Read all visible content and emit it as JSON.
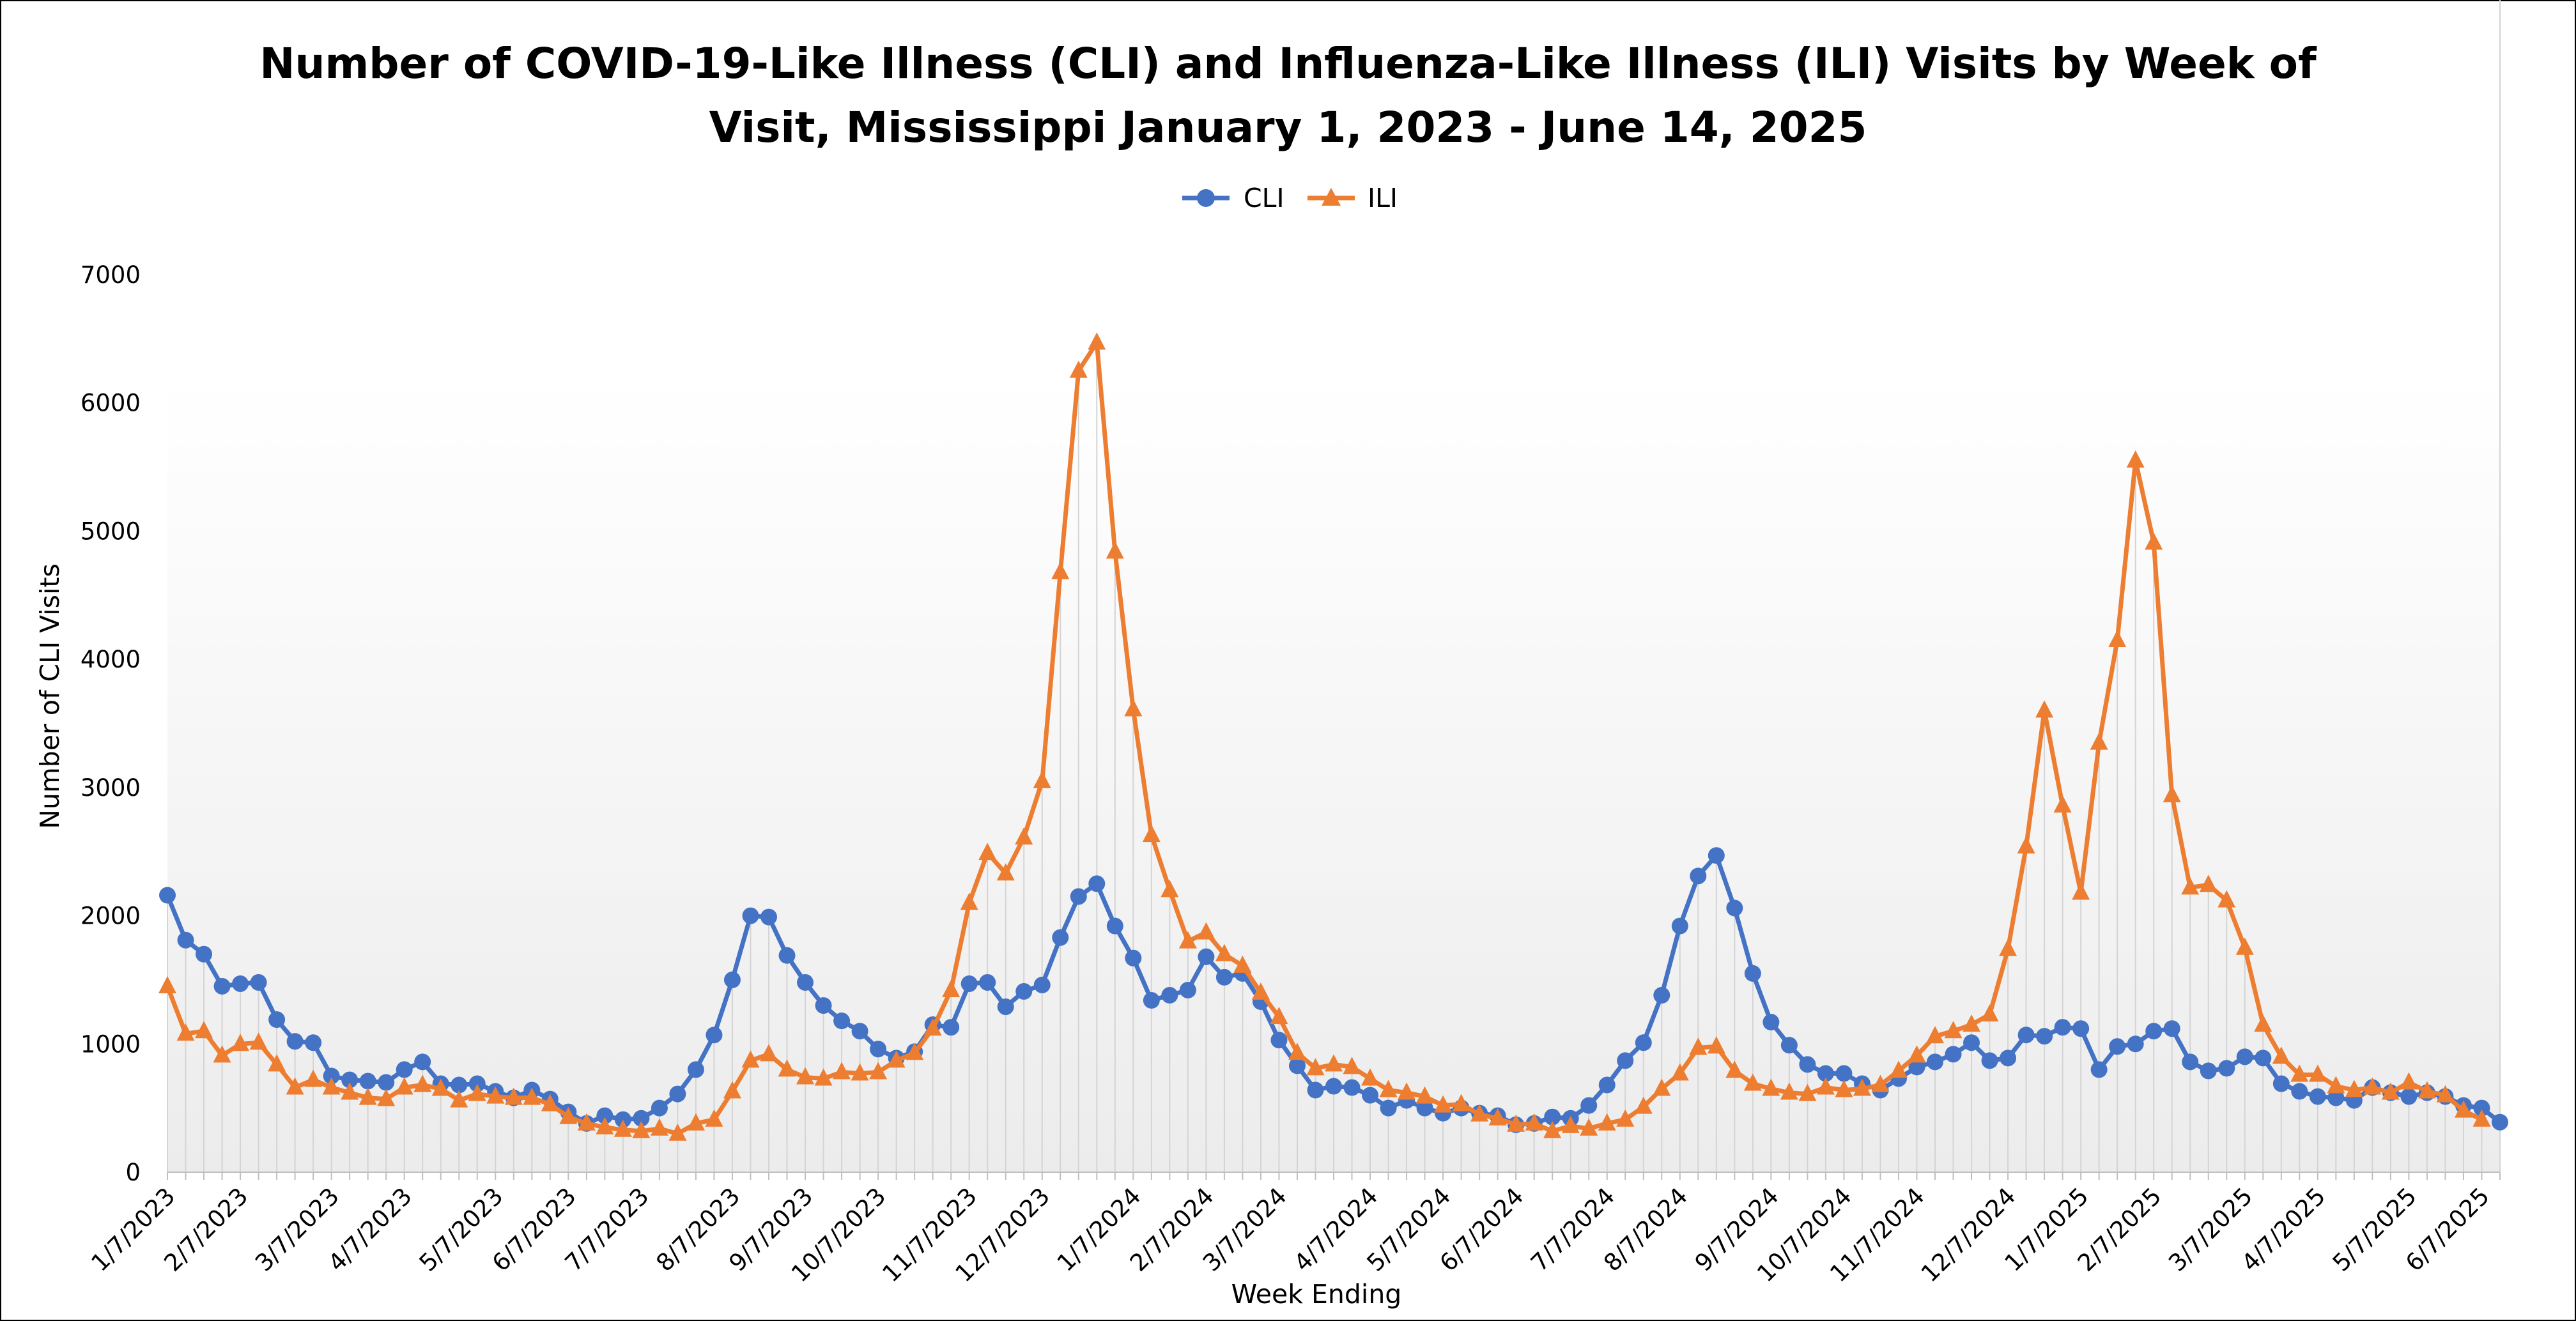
{
  "chart_data": {
    "type": "line",
    "title_line1": "Number of COVID-19-Like Illness (CLI) and Influenza-Like Illness (ILI) Visits by Week of",
    "title_line2": "Visit, Mississippi January 1, 2023 - June 14, 2025",
    "xlabel": "Week Ending",
    "ylabel": "Number of CLI Visits",
    "ylim": [
      0,
      7000
    ],
    "yticks": [
      "0",
      "1000",
      "2000",
      "3000",
      "4000",
      "5000",
      "6000",
      "7000"
    ],
    "x_tick_labels": [
      "1/7/2023",
      "2/7/2023",
      "3/7/2023",
      "4/7/2023",
      "5/7/2023",
      "6/7/2023",
      "7/7/2023",
      "8/7/2023",
      "9/7/2023",
      "10/7/2023",
      "11/7/2023",
      "12/7/2023",
      "1/7/2024",
      "2/7/2024",
      "3/7/2024",
      "4/7/2024",
      "5/7/2024",
      "6/7/2024",
      "7/7/2024",
      "8/7/2024",
      "9/7/2024",
      "10/7/2024",
      "11/7/2024",
      "12/7/2024",
      "1/7/2025",
      "2/7/2025",
      "3/7/2025",
      "4/7/2025",
      "5/7/2025",
      "6/7/2025"
    ],
    "x_start": "1/7/2023",
    "x_step": "1 week",
    "grid": "vertical drop lines at each week",
    "legend_position": "top",
    "series": [
      {
        "name": "CLI",
        "color": "#4472C4",
        "marker": "circle",
        "values": [
          2160,
          1810,
          1700,
          1450,
          1470,
          1480,
          1190,
          1020,
          1010,
          750,
          720,
          710,
          700,
          800,
          860,
          690,
          680,
          690,
          630,
          580,
          640,
          570,
          470,
          380,
          440,
          410,
          420,
          500,
          610,
          800,
          1070,
          1500,
          2000,
          1990,
          1690,
          1480,
          1300,
          1180,
          1100,
          960,
          890,
          940,
          1150,
          1130,
          1470,
          1480,
          1290,
          1410,
          1460,
          1830,
          2150,
          2250,
          1920,
          1670,
          1340,
          1380,
          1420,
          1680,
          1520,
          1550,
          1330,
          1030,
          830,
          640,
          670,
          660,
          600,
          500,
          560,
          500,
          460,
          500,
          460,
          440,
          370,
          380,
          430,
          420,
          520,
          680,
          870,
          1010,
          1380,
          1920,
          2310,
          2470,
          2060,
          1550,
          1170,
          990,
          840,
          770,
          770,
          690,
          640,
          730,
          820,
          860,
          920,
          1010,
          870,
          890,
          1070,
          1060,
          1130,
          1120,
          800,
          980,
          1000,
          1100,
          1120,
          860,
          790,
          810,
          900,
          890,
          690,
          630,
          590,
          580,
          560,
          660,
          620,
          590,
          620,
          590,
          520,
          500,
          390
        ]
      },
      {
        "name": "ILI",
        "color": "#ED7D31",
        "marker": "triangle",
        "values": [
          1450,
          1080,
          1100,
          910,
          1000,
          1010,
          840,
          660,
          720,
          660,
          620,
          580,
          570,
          660,
          680,
          650,
          560,
          610,
          590,
          580,
          580,
          530,
          430,
          380,
          350,
          330,
          320,
          340,
          300,
          380,
          410,
          630,
          870,
          920,
          800,
          740,
          730,
          780,
          770,
          780,
          870,
          930,
          1120,
          1420,
          2100,
          2490,
          2330,
          2610,
          3050,
          4680,
          6250,
          6470,
          4840,
          3610,
          2630,
          2200,
          1800,
          1870,
          1700,
          1610,
          1400,
          1210,
          930,
          810,
          840,
          820,
          730,
          640,
          620,
          590,
          520,
          530,
          450,
          420,
          370,
          380,
          320,
          360,
          340,
          380,
          410,
          510,
          650,
          770,
          970,
          980,
          790,
          690,
          650,
          620,
          610,
          660,
          640,
          650,
          680,
          790,
          910,
          1060,
          1100,
          1150,
          1230,
          1740,
          2540,
          3600,
          2860,
          2180,
          3350,
          4150,
          5550,
          4910,
          2940,
          2220,
          2240,
          2120,
          1750,
          1150,
          900,
          760,
          760,
          670,
          640,
          660,
          620,
          700,
          630,
          600,
          480,
          410
        ]
      }
    ]
  }
}
